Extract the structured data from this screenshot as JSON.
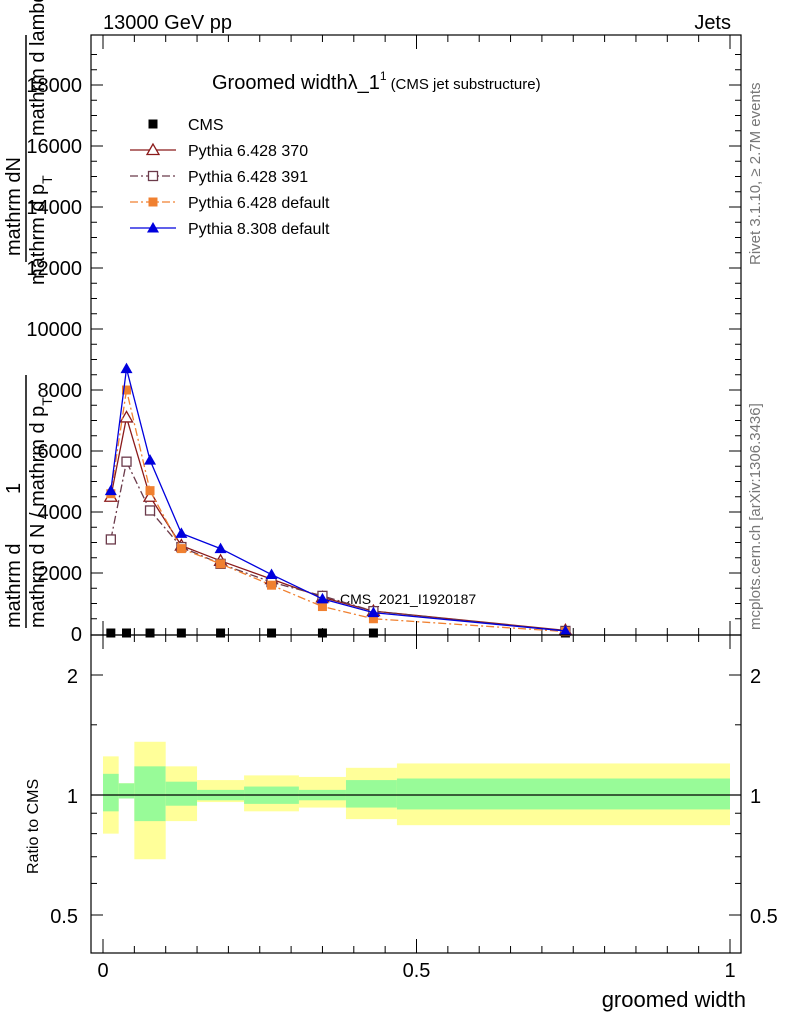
{
  "header": {
    "left": "13000 GeV pp",
    "right": "Jets"
  },
  "title": {
    "main": "Groomed width",
    "lambda": "λ_1",
    "sup": "1",
    "sub": "(CMS jet substructure)"
  },
  "ylabel": {
    "top1": "mathrm d",
    "top1b": "N",
    "top2": "mathrm d p",
    "top2b": "T",
    "top3": "mathrm d lambda",
    "one": "1",
    "bot1": "mathrm d N / mathrm d p",
    "bot1b": "T",
    "bot2": "mathrm d"
  },
  "side": {
    "rivet": "Rivet 3.1.10, ≥ 2.7M events",
    "mcplots": "mcplots.cern.ch [arXiv:1306.3436]"
  },
  "watermark": "CMS_2021_I1920187",
  "ratio_label": "Ratio to CMS",
  "xlabel": "groomed width",
  "colors": {
    "cms": "#000000",
    "py370": "#8b1a1a",
    "py391": "#6b3a4a",
    "py6def": "#f08030",
    "py8def": "#0000dd",
    "band_inner": "#98fb98",
    "band_outer": "#ffff99"
  },
  "chart_data": [
    {
      "type": "line",
      "xlim": [
        0,
        1
      ],
      "ylim": [
        0,
        19500
      ],
      "yticks": [
        2000,
        4000,
        6000,
        8000,
        10000,
        12000,
        14000,
        16000,
        18000
      ],
      "ytick_labels": [
        "2000",
        "4000",
        "6000",
        "8000",
        "10000",
        "12000",
        "14000",
        "16000",
        "18000"
      ],
      "legend_position": "top-left",
      "x": [
        0.0125,
        0.0375,
        0.075,
        0.125,
        0.1875,
        0.2688,
        0.35,
        0.4313,
        0.7375
      ],
      "series": [
        {
          "name": "CMS",
          "marker": "square-filled",
          "line": "none",
          "values": [
            25,
            25,
            25,
            25,
            25,
            25,
            25,
            25,
            25
          ]
        },
        {
          "name": "Pythia 6.428 370",
          "marker": "triangle-open",
          "line": "solid",
          "values": [
            4500,
            7100,
            4500,
            2900,
            2400,
            1800,
            1200,
            750,
            120
          ]
        },
        {
          "name": "Pythia 6.428 391",
          "marker": "square-open",
          "line": "dashdot",
          "values": [
            3100,
            5650,
            4050,
            2850,
            2300,
            1700,
            1250,
            750,
            100
          ]
        },
        {
          "name": "Pythia 6.428 default",
          "marker": "square-filled",
          "line": "dashdot",
          "values": [
            4600,
            8000,
            4700,
            2800,
            2300,
            1600,
            900,
            500,
            80
          ]
        },
        {
          "name": "Pythia 8.308 default",
          "marker": "triangle-filled",
          "line": "solid",
          "values": [
            4700,
            8700,
            5700,
            3300,
            2800,
            1950,
            1150,
            700,
            100
          ]
        }
      ]
    },
    {
      "type": "area",
      "ylabel": "Ratio to CMS",
      "xlabel": "groomed width",
      "xlim": [
        0,
        1
      ],
      "ylim": [
        0.5,
        2.3
      ],
      "xticks": [
        0,
        0.5,
        1
      ],
      "xtick_labels": [
        "0",
        "0.5",
        "1"
      ],
      "yticks": [
        0.5,
        1,
        2
      ],
      "ytick_labels": [
        "0.5",
        "1",
        "2"
      ],
      "bins": [
        {
          "lo": 0.0,
          "hi": 0.025,
          "inner": [
            0.91,
            1.13
          ],
          "outer": [
            0.8,
            1.25
          ]
        },
        {
          "lo": 0.025,
          "hi": 0.05,
          "inner": [
            0.98,
            1.07
          ],
          "outer": [
            0.98,
            1.07
          ]
        },
        {
          "lo": 0.05,
          "hi": 0.1,
          "inner": [
            0.86,
            1.18
          ],
          "outer": [
            0.69,
            1.36
          ]
        },
        {
          "lo": 0.1,
          "hi": 0.15,
          "inner": [
            0.94,
            1.08
          ],
          "outer": [
            0.86,
            1.18
          ]
        },
        {
          "lo": 0.15,
          "hi": 0.225,
          "inner": [
            0.97,
            1.03
          ],
          "outer": [
            0.96,
            1.09
          ]
        },
        {
          "lo": 0.225,
          "hi": 0.3125,
          "inner": [
            0.95,
            1.05
          ],
          "outer": [
            0.91,
            1.12
          ]
        },
        {
          "lo": 0.3125,
          "hi": 0.3875,
          "inner": [
            0.97,
            1.03
          ],
          "outer": [
            0.93,
            1.11
          ]
        },
        {
          "lo": 0.3875,
          "hi": 0.4688,
          "inner": [
            0.93,
            1.09
          ],
          "outer": [
            0.87,
            1.17
          ]
        },
        {
          "lo": 0.4688,
          "hi": 1.0,
          "inner": [
            0.92,
            1.1
          ],
          "outer": [
            0.84,
            1.2
          ]
        }
      ]
    }
  ]
}
